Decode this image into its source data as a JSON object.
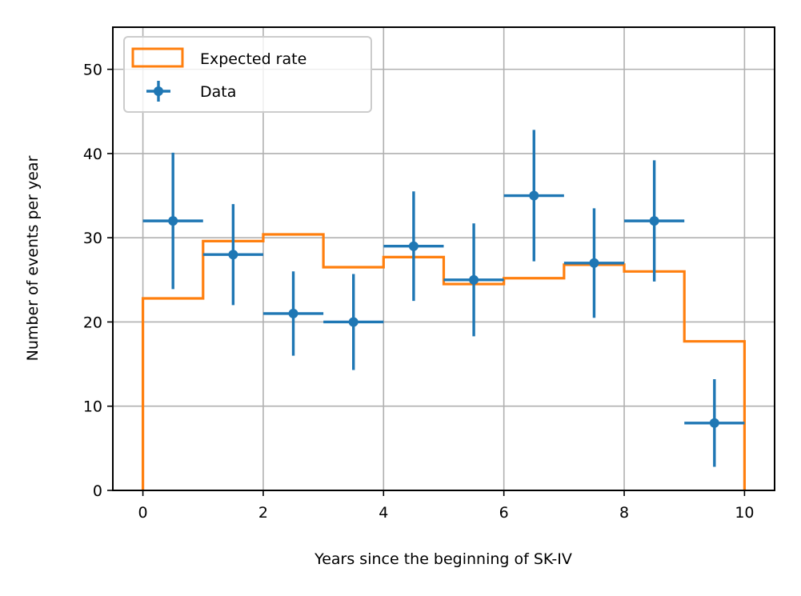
{
  "chart_data": {
    "type": "histogram-with-errorbars",
    "title": "",
    "xlabel": "Years since the beginning of SK-IV",
    "ylabel": "Number of events per year",
    "xlim": [
      -0.5,
      10.5
    ],
    "ylim": [
      0,
      55
    ],
    "xticks": [
      0,
      2,
      4,
      6,
      8,
      10
    ],
    "yticks": [
      0,
      10,
      20,
      30,
      40,
      50
    ],
    "grid": true,
    "legend_position": "upper-left",
    "series": [
      {
        "name": "Expected rate",
        "kind": "step-histogram",
        "color": "#ff7f0e",
        "bin_edges": [
          0,
          1,
          2,
          3,
          4,
          5,
          6,
          7,
          8,
          9,
          10
        ],
        "values": [
          22.8,
          29.6,
          30.4,
          26.5,
          27.7,
          24.5,
          25.2,
          26.8,
          26.0,
          17.7
        ]
      },
      {
        "name": "Data",
        "kind": "errorbar",
        "color": "#1f77b4",
        "x": [
          0.5,
          1.5,
          2.5,
          3.5,
          4.5,
          5.5,
          6.5,
          7.5,
          8.5,
          9.5
        ],
        "y": [
          32,
          28,
          21,
          20,
          29,
          25,
          35,
          27,
          32,
          8
        ],
        "xerr": [
          0.5,
          0.5,
          0.5,
          0.5,
          0.5,
          0.5,
          0.5,
          0.5,
          0.5,
          0.5
        ],
        "yerr_low": [
          8.1,
          6.0,
          5.0,
          5.7,
          6.5,
          6.7,
          7.8,
          6.5,
          7.2,
          5.2
        ],
        "yerr_high": [
          8.1,
          6.0,
          5.0,
          5.7,
          6.5,
          6.7,
          7.8,
          6.5,
          7.2,
          5.2
        ]
      }
    ]
  }
}
